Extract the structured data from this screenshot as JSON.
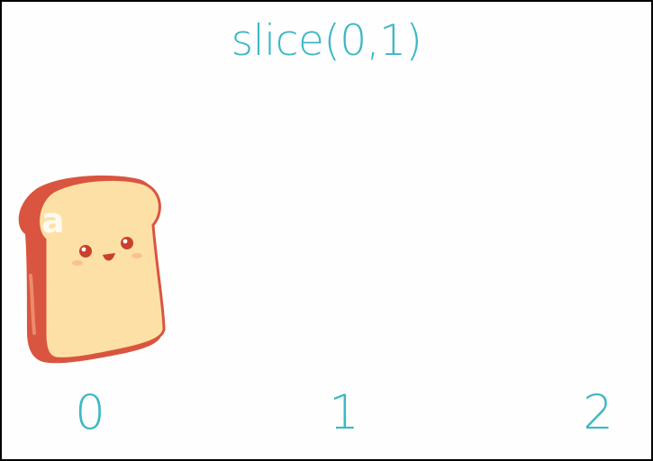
{
  "title": "slice(0,1)",
  "element": {
    "letter": "a",
    "icon": "toast-icon"
  },
  "indices": [
    "0",
    "1",
    "2"
  ],
  "colors": {
    "accent": "#3cb7c6",
    "crust": "#d9553f",
    "bread": "#fde0a6",
    "background": "#ffffff",
    "border": "#000000"
  }
}
